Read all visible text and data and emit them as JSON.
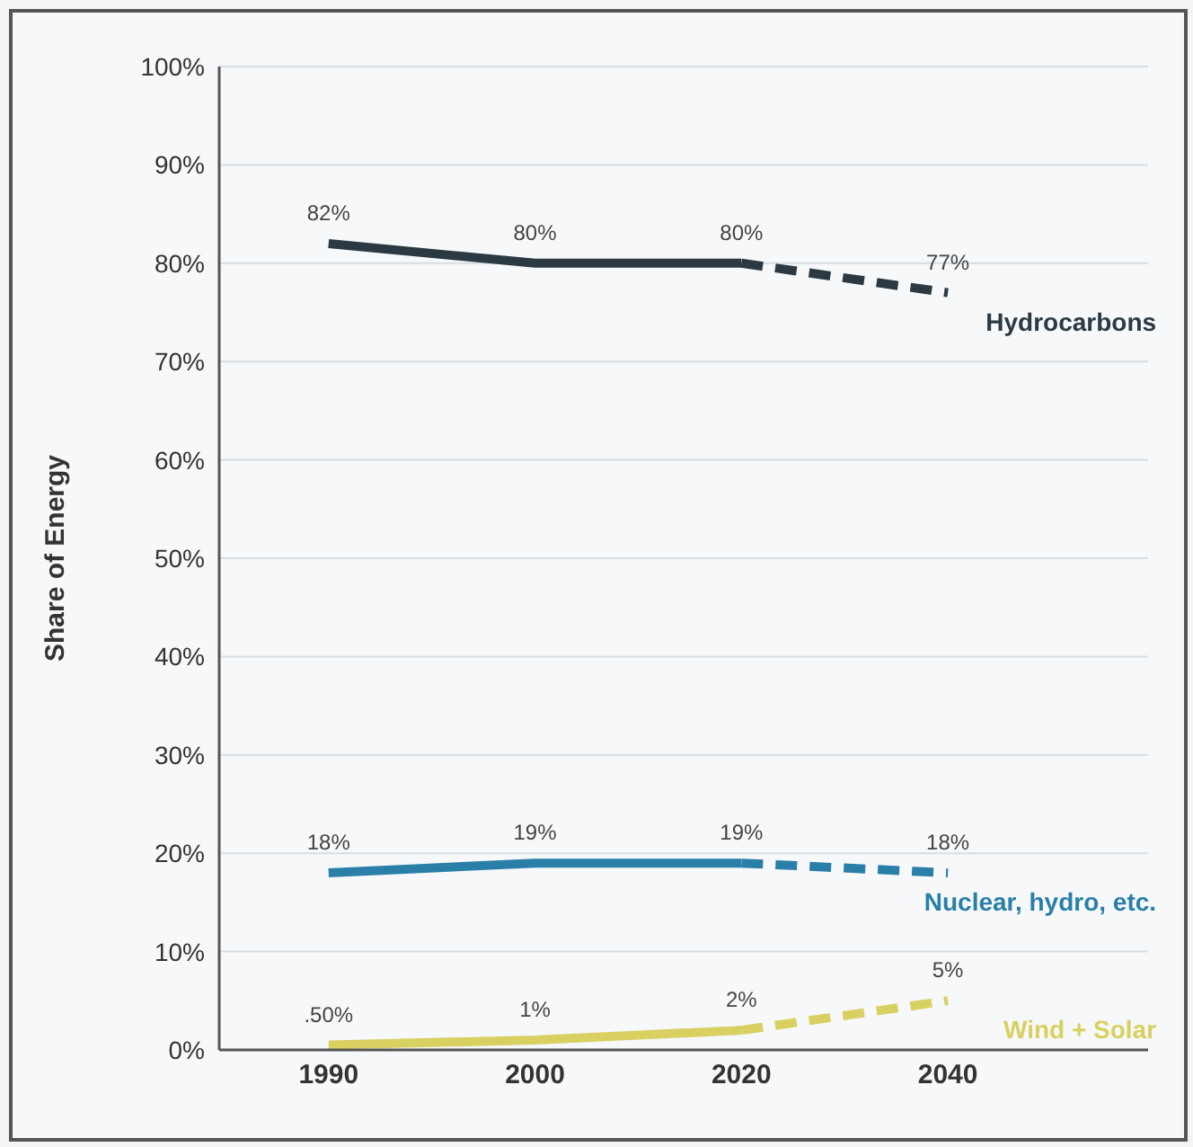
{
  "chart_data": {
    "type": "line",
    "ylabel": "Share of Energy",
    "categories": [
      "1990",
      "2000",
      "2020",
      "2040"
    ],
    "ylim": [
      0,
      100
    ],
    "yticks": [
      {
        "value": 0,
        "label": "0%"
      },
      {
        "value": 10,
        "label": "10%"
      },
      {
        "value": 20,
        "label": "20%"
      },
      {
        "value": 30,
        "label": "30%"
      },
      {
        "value": 40,
        "label": "40%"
      },
      {
        "value": 50,
        "label": "50%"
      },
      {
        "value": 60,
        "label": "60%"
      },
      {
        "value": 70,
        "label": "70%"
      },
      {
        "value": 80,
        "label": "80%"
      },
      {
        "value": 90,
        "label": "90%"
      },
      {
        "value": 100,
        "label": "100%"
      }
    ],
    "grid": "y",
    "marker": "none",
    "series": [
      {
        "color": "#2b3a42",
        "values": [
          82,
          80,
          80,
          null
        ],
        "line_style": "solid",
        "value_labels": [
          "82%",
          "80%",
          "80%",
          null
        ]
      },
      {
        "name": "Hydrocarbons",
        "color": "#2b3a42",
        "values": [
          null,
          null,
          80,
          77
        ],
        "line_style": "dashed",
        "value_labels": [
          null,
          null,
          null,
          "77%"
        ]
      },
      {
        "color": "#2a7fa8",
        "values": [
          18,
          19,
          19,
          null
        ],
        "line_style": "solid",
        "value_labels": [
          "18%",
          "19%",
          "19%",
          null
        ]
      },
      {
        "name": "Nuclear, hydro, etc.",
        "color": "#2a7fa8",
        "values": [
          null,
          null,
          19,
          18
        ],
        "line_style": "dashed",
        "value_labels": [
          null,
          null,
          null,
          "18%"
        ]
      },
      {
        "color": "#d8d060",
        "values": [
          0.5,
          1,
          2,
          null
        ],
        "line_style": "solid",
        "value_labels": [
          ".50%",
          "1%",
          "2%",
          null
        ]
      },
      {
        "name": "Wind + Solar",
        "color": "#d8d060",
        "values": [
          null,
          null,
          2,
          5
        ],
        "line_style": "dashed",
        "value_labels": [
          null,
          null,
          null,
          "5%"
        ]
      }
    ]
  }
}
